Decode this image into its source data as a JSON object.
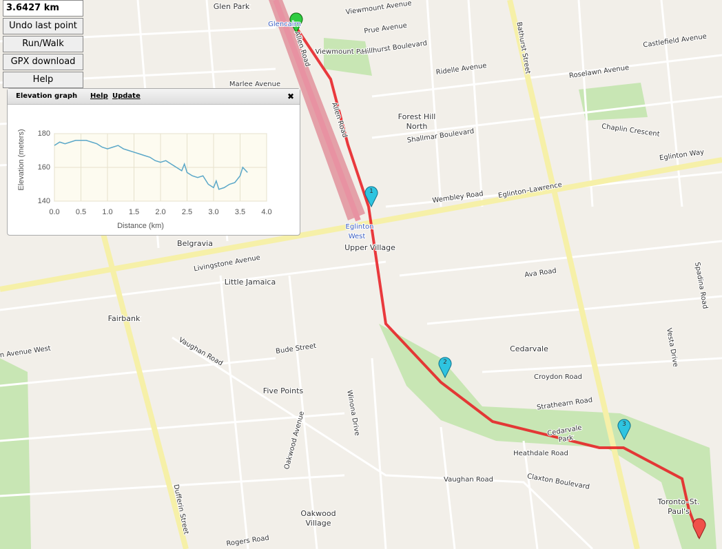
{
  "controls": {
    "distance": "3.6427 km",
    "undo": "Undo last point",
    "mode": "Run/Walk",
    "gpx": "GPX download",
    "help": "Help"
  },
  "elevation_panel": {
    "title": "Elevation graph",
    "help": "Help",
    "update": "Update",
    "close": "✖"
  },
  "chart_data": {
    "type": "line",
    "xlabel": "Distance (km)",
    "ylabel": "Elevation (meters)",
    "x": [
      0,
      0.1,
      0.2,
      0.3,
      0.4,
      0.5,
      0.6,
      0.7,
      0.8,
      0.9,
      1.0,
      1.1,
      1.2,
      1.3,
      1.4,
      1.5,
      1.6,
      1.7,
      1.8,
      1.9,
      2.0,
      2.1,
      2.2,
      2.3,
      2.4,
      2.45,
      2.5,
      2.6,
      2.7,
      2.8,
      2.9,
      3.0,
      3.05,
      3.1,
      3.2,
      3.3,
      3.4,
      3.5,
      3.55,
      3.64
    ],
    "values": [
      173,
      175,
      174,
      175,
      176,
      176,
      176,
      175,
      174,
      172,
      171,
      172,
      173,
      171,
      170,
      169,
      168,
      167,
      166,
      164,
      163,
      164,
      162,
      160,
      158,
      162,
      157,
      155,
      154,
      155,
      150,
      148,
      152,
      147,
      148,
      150,
      151,
      155,
      160,
      157
    ],
    "color": "#5aa7c8",
    "xlim": [
      0,
      4
    ],
    "xticks": [
      {
        "value": 0,
        "label": "0.0"
      },
      0.5,
      {
        "value": 1,
        "label": "1.0"
      },
      1.5,
      {
        "value": 2,
        "label": "2.0"
      },
      2.5,
      {
        "value": 3,
        "label": "3.0"
      },
      3.5,
      {
        "value": 4,
        "label": "4.0"
      }
    ],
    "ylim": [
      140,
      180
    ],
    "yticks": [
      140,
      160,
      180
    ],
    "grid": true
  },
  "map": {
    "labels": [
      "Glen Park",
      "Glencairn",
      "Allen Road",
      "Allen Road",
      "Viewmount Park",
      "Viewmount Avenue",
      "Prue Avenue",
      "Hillhurst Boulevard",
      "Ridelle Avenue",
      "Bathurst Street",
      "Forest Hill",
      "North",
      "Shallmar Boulevard",
      "Eglinton Way",
      "Eglinton–Lawrence",
      "Eglinton",
      "West",
      "Upper Village",
      "Belgravia",
      "Little Jamaica",
      "Fairbank",
      "Cedarvale",
      "Five Points",
      "Cedarvale",
      "Park",
      "Heathdale Road",
      "Vaughan Road",
      "Claxton Boulevard",
      "Oakwood",
      "Village",
      "Toronto–St.",
      "Paul's",
      "Dufferin Street",
      "Ava Road",
      "Croydon Road",
      "Strathearn Road",
      "Wembley Road",
      "Rogers Road",
      "Oakwood Avenue",
      "Winona Drive",
      "Chaplin Crescent",
      "Spadina Road",
      "Vesta Drive",
      "Castlefield Avenue",
      "Roselawn Avenue",
      "Bude Street",
      "Vaughan Road",
      "Marlee Avenue",
      "Livingstone Avenue",
      "Eglinton Avenue West"
    ],
    "markers": [
      "1",
      "2",
      "3"
    ]
  }
}
